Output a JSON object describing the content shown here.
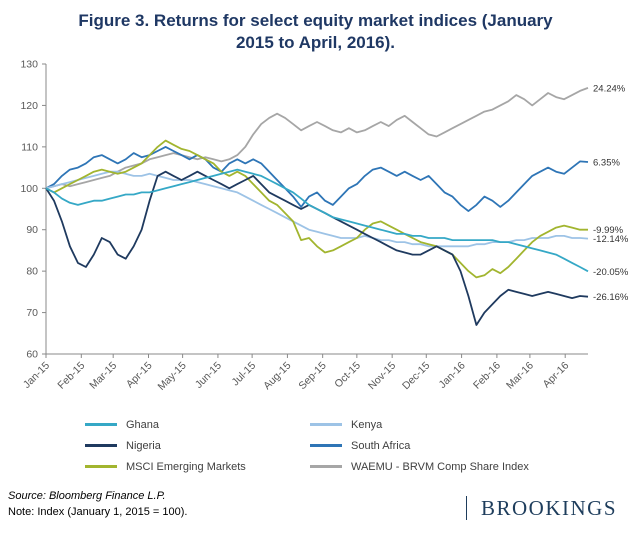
{
  "title": "Figure 3. Returns for select equity market indices (January 2015 to April, 2016).",
  "colors": {
    "title": "#1F3864",
    "brand": "#1E3D5C",
    "axis": "#898989"
  },
  "footer": {
    "source": "Source: Bloomberg Finance L.P.",
    "note": "Note: Index (January 1, 2015 = 100).",
    "brand": "BROOKINGS"
  },
  "chart_data": {
    "type": "line",
    "title": "Figure 3. Returns for select equity market indices (January 2015 to April, 2016).",
    "xlabel": "",
    "ylabel": "",
    "ylim": [
      60,
      130
    ],
    "y_ticks": [
      60,
      70,
      80,
      90,
      100,
      110,
      120,
      130
    ],
    "grid": false,
    "legend_position": "bottom",
    "x_unit": "weeks since Jan 1, 2015",
    "x_ticks": [
      {
        "label": "Jan-15",
        "week": 0
      },
      {
        "label": "Feb-15",
        "week": 4.43
      },
      {
        "label": "Mar-15",
        "week": 8.43
      },
      {
        "label": "Apr-15",
        "week": 12.86
      },
      {
        "label": "May-15",
        "week": 17.14
      },
      {
        "label": "Jun-15",
        "week": 21.57
      },
      {
        "label": "Jul-15",
        "week": 25.86
      },
      {
        "label": "Aug-15",
        "week": 30.29
      },
      {
        "label": "Sep-15",
        "week": 34.71
      },
      {
        "label": "Oct-15",
        "week": 39.0
      },
      {
        "label": "Nov-15",
        "week": 43.43
      },
      {
        "label": "Dec-15",
        "week": 47.71
      },
      {
        "label": "Jan-16",
        "week": 52.14
      },
      {
        "label": "Feb-16",
        "week": 56.57
      },
      {
        "label": "Mar-16",
        "week": 60.71
      },
      {
        "label": "Apr-16",
        "week": 65.14
      }
    ],
    "series": [
      {
        "name": "Ghana",
        "color": "#35A8C6",
        "end_label": "-20.05%",
        "values": [
          100,
          99,
          97.5,
          96.5,
          96,
          96.5,
          97,
          97,
          97.5,
          98,
          98.5,
          98.5,
          99,
          99,
          99.5,
          100,
          100.5,
          101,
          101.5,
          102,
          102.5,
          103,
          103.5,
          104,
          104.5,
          104,
          103.5,
          103,
          102,
          101,
          100,
          99,
          97.5,
          96,
          95,
          94,
          93,
          92.5,
          92,
          91.5,
          91,
          90.5,
          90,
          89.5,
          89,
          89,
          88.5,
          88.5,
          88,
          88,
          88,
          87.5,
          87.5,
          87.5,
          87.5,
          87.5,
          87.5,
          87,
          87,
          86.5,
          86,
          85.5,
          85,
          84.5,
          84,
          83,
          82,
          81,
          79.95
        ]
      },
      {
        "name": "Nigeria",
        "color": "#1F3A5F",
        "end_label": "-26.16%",
        "values": [
          100,
          97,
          92,
          86,
          82,
          81,
          84,
          88,
          87,
          84,
          83,
          86,
          90,
          97,
          103,
          104,
          103,
          102,
          103,
          104,
          103,
          102,
          101,
          100,
          101,
          102,
          103,
          101,
          99,
          98,
          97,
          96,
          95,
          96,
          95,
          94,
          93,
          92,
          91,
          90,
          89,
          88,
          87,
          86,
          85,
          84.5,
          84,
          84,
          85,
          86,
          85,
          84,
          80,
          74,
          67,
          70,
          72,
          74,
          75.5,
          75,
          74.5,
          74,
          74.5,
          75,
          74.5,
          74,
          73.5,
          74,
          73.84
        ]
      },
      {
        "name": "MSCI Emerging Markets",
        "color": "#A2B52F",
        "end_label": "-9.99%",
        "values": [
          100,
          99,
          100,
          101,
          102,
          103,
          104,
          104.5,
          104,
          103.5,
          104,
          105,
          106,
          108,
          110,
          111.5,
          110.5,
          109.5,
          109,
          108,
          107,
          106,
          104,
          103,
          104,
          103,
          101,
          99,
          97,
          96,
          94,
          92,
          87.5,
          88,
          86,
          84.5,
          85,
          86,
          87,
          88,
          90,
          91.5,
          92,
          91,
          90,
          89,
          88,
          87,
          86.5,
          86,
          85,
          84,
          82,
          80,
          78.5,
          79,
          80.5,
          79.5,
          81,
          83,
          85,
          87,
          88.5,
          89.5,
          90.5,
          91,
          90.5,
          90,
          90.01
        ]
      },
      {
        "name": "Kenya",
        "color": "#9DC3E6",
        "end_label": "-12.14%",
        "values": [
          100,
          100.5,
          101,
          101.5,
          102,
          102.5,
          103,
          103.5,
          104,
          104,
          103.5,
          103,
          103,
          103.5,
          103,
          102.5,
          102,
          102,
          102,
          101.5,
          101,
          100.5,
          100,
          99.5,
          99,
          98,
          97,
          96,
          95,
          94,
          93,
          92,
          91,
          90,
          89.5,
          89,
          88.5,
          88,
          88,
          88,
          88.5,
          88,
          87.5,
          87.5,
          87,
          87,
          86.5,
          86.5,
          86,
          86,
          86,
          86,
          86,
          86,
          86.5,
          86.5,
          87,
          87,
          87,
          87.5,
          87.5,
          88,
          88,
          88,
          88.5,
          88.5,
          88,
          88,
          87.86
        ]
      },
      {
        "name": "South Africa",
        "color": "#2E75B6",
        "end_label": "6.35%",
        "values": [
          100,
          101,
          103,
          104.5,
          105,
          106,
          107.5,
          108,
          107,
          106,
          107,
          108.5,
          107.5,
          108,
          109,
          110,
          109,
          108,
          107,
          108,
          107,
          105,
          104,
          106,
          107,
          106,
          107,
          106,
          104,
          102,
          100,
          98,
          95.5,
          98,
          99,
          97,
          96,
          98,
          100,
          101,
          103,
          104.5,
          105,
          104,
          103,
          104,
          103,
          102,
          103,
          101,
          99,
          98,
          96,
          94.5,
          96,
          98,
          97,
          95.5,
          97,
          99,
          101,
          103,
          104,
          105,
          104,
          103.5,
          105,
          106.5,
          106.35
        ]
      },
      {
        "name": "WAEMU - BRVM Comp Share Index",
        "color": "#A6A6A6",
        "end_label": "24.24%",
        "values": [
          100,
          100.5,
          101,
          100.5,
          101,
          101.5,
          102,
          102.5,
          103,
          104,
          105,
          105.5,
          106,
          107,
          107.5,
          108,
          108.5,
          108,
          107.5,
          107,
          107.5,
          107,
          106.5,
          107,
          108,
          110,
          113,
          115.5,
          117,
          118,
          117,
          115.5,
          114,
          115,
          116,
          115,
          114,
          113.5,
          114.5,
          113.5,
          114,
          115,
          116,
          115,
          116.5,
          117.5,
          116,
          114.5,
          113,
          112.5,
          113.5,
          114.5,
          115.5,
          116.5,
          117.5,
          118.5,
          119,
          120,
          121,
          122.5,
          121.5,
          120,
          121.5,
          123,
          122,
          121.5,
          122.5,
          123.5,
          124.24
        ]
      }
    ]
  }
}
